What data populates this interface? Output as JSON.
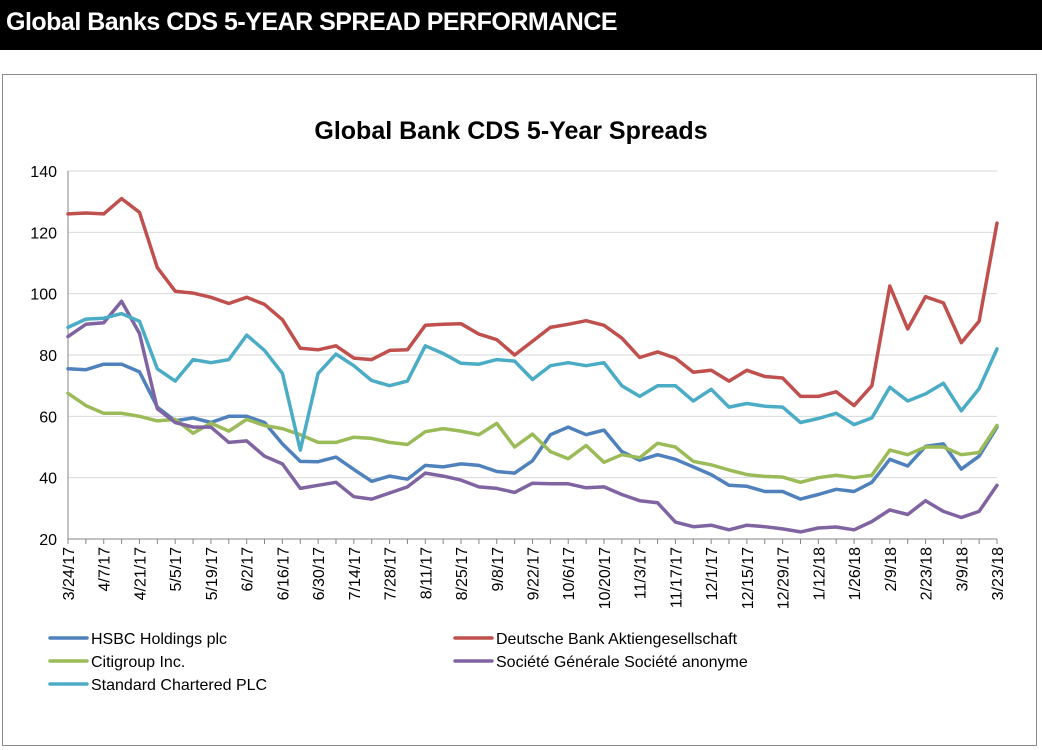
{
  "header": {
    "title": "Global Banks CDS 5-YEAR SPREAD PERFORMANCE"
  },
  "colors": {
    "hsbc": "#4f81bd",
    "deutsche": "#c0504d",
    "citi": "#9bbb59",
    "socgen": "#8064a2",
    "stanchart": "#4bacc6",
    "grid": "#d9d9d9",
    "axis": "#868686"
  },
  "chart_data": {
    "type": "line",
    "title": "Global Bank CDS 5-Year Spreads",
    "xlabel": "",
    "ylabel": "",
    "ylim": [
      20,
      140
    ],
    "yticks": [
      20,
      40,
      60,
      80,
      100,
      120,
      140
    ],
    "grid": "horizontal",
    "legend_position": "bottom",
    "x_tick_labels": [
      "3/24/17",
      "4/7/17",
      "4/21/17",
      "5/5/17",
      "5/19/17",
      "6/2/17",
      "6/16/17",
      "6/30/17",
      "7/14/17",
      "7/28/17",
      "8/11/17",
      "8/25/17",
      "9/8/17",
      "9/22/17",
      "10/6/17",
      "10/20/17",
      "11/3/17",
      "11/17/17",
      "12/1/17",
      "12/15/17",
      "12/29/17",
      "1/12/18",
      "1/26/18",
      "2/9/18",
      "2/23/18",
      "3/9/18",
      "3/23/18"
    ],
    "x": [
      "3/24/17",
      "3/31/17",
      "4/7/17",
      "4/14/17",
      "4/21/17",
      "4/28/17",
      "5/5/17",
      "5/12/17",
      "5/19/17",
      "5/26/17",
      "6/2/17",
      "6/9/17",
      "6/16/17",
      "6/23/17",
      "6/30/17",
      "7/7/17",
      "7/14/17",
      "7/21/17",
      "7/28/17",
      "8/4/17",
      "8/11/17",
      "8/18/17",
      "8/25/17",
      "9/1/17",
      "9/8/17",
      "9/15/17",
      "9/22/17",
      "9/29/17",
      "10/6/17",
      "10/13/17",
      "10/20/17",
      "10/27/17",
      "11/3/17",
      "11/10/17",
      "11/17/17",
      "11/24/17",
      "12/1/17",
      "12/8/17",
      "12/15/17",
      "12/22/17",
      "12/29/17",
      "1/5/18",
      "1/12/18",
      "1/19/18",
      "1/26/18",
      "2/2/18",
      "2/9/18",
      "2/16/18",
      "2/23/18",
      "3/2/18",
      "3/9/18",
      "3/16/18",
      "3/23/18"
    ],
    "series": [
      {
        "name": "HSBC Holdings plc",
        "color_key": "hsbc",
        "values": [
          75.5,
          75.2,
          77,
          77,
          74.5,
          63,
          58.5,
          59.5,
          58,
          60,
          60,
          58,
          51,
          45.3,
          45.2,
          46.7,
          42.7,
          38.8,
          40.5,
          39.5,
          44,
          43.5,
          44.5,
          44,
          42,
          41.5,
          45.5,
          54,
          56.5,
          54,
          55.5,
          48.5,
          45.7,
          47.5,
          46,
          43.5,
          41,
          37.5,
          37.2,
          35.5,
          35.5,
          33,
          34.5,
          36.2,
          35.5,
          38.5,
          46,
          43.8,
          50.2,
          51,
          42.8,
          47,
          56.5
        ]
      },
      {
        "name": "Deutsche Bank Aktiengesellschaft",
        "color_key": "deutsche",
        "values": [
          126,
          126.3,
          126,
          131,
          126.5,
          108.5,
          100.8,
          100.2,
          98.8,
          96.8,
          98.8,
          96.5,
          91.5,
          82.2,
          81.7,
          83,
          79,
          78.5,
          81.5,
          81.7,
          89.7,
          90,
          90.2,
          86.8,
          85,
          80,
          84.5,
          89,
          90,
          91.2,
          89.7,
          85.5,
          79.2,
          81,
          79,
          74.4,
          75,
          71.5,
          75,
          73,
          72.5,
          66.5,
          66.5,
          68,
          63.5,
          70,
          102.5,
          88.5,
          99,
          97,
          84,
          91,
          123
        ]
      },
      {
        "name": "Citigroup Inc.",
        "color_key": "citi",
        "values": [
          67.5,
          63.5,
          61,
          61,
          60,
          58.5,
          59,
          54.5,
          57.8,
          55.2,
          59,
          57,
          56,
          54,
          51.5,
          51.5,
          53.2,
          52.8,
          51.5,
          50.8,
          55,
          56,
          55.2,
          54,
          57.7,
          50,
          54.2,
          48.5,
          46.2,
          50.5,
          45,
          47.5,
          46.5,
          51.2,
          50,
          45.3,
          44.2,
          42.5,
          41,
          40.4,
          40.2,
          38.5,
          40,
          40.8,
          40,
          40.8,
          49,
          47.5,
          50,
          50,
          47.5,
          48.2,
          57
        ]
      },
      {
        "name": "Société Générale Société anonyme",
        "color_key": "socgen",
        "values": [
          86,
          90,
          90.5,
          97.5,
          87,
          62.5,
          58,
          56.5,
          56.5,
          51.5,
          52,
          47,
          44.5,
          36.5,
          37.5,
          38.5,
          33.8,
          33,
          35,
          37,
          41.5,
          40.5,
          39.2,
          37,
          36.5,
          35.2,
          38.2,
          38,
          38,
          36.7,
          37,
          34.5,
          32.5,
          31.8,
          25.5,
          24,
          24.5,
          23,
          24.5,
          24,
          23.3,
          22.3,
          23.6,
          23.9,
          23,
          25.7,
          29.5,
          28,
          32.5,
          29,
          27,
          29,
          37.5
        ]
      },
      {
        "name": "Standard Chartered PLC",
        "color_key": "stanchart",
        "values": [
          89,
          91.7,
          92,
          93.5,
          91,
          75.5,
          71.5,
          78.5,
          77.5,
          78.5,
          86.5,
          81.5,
          74,
          49,
          74,
          80.3,
          76.5,
          71.7,
          70,
          71.5,
          83,
          80.5,
          77.3,
          77,
          78.5,
          78,
          72,
          76.5,
          77.5,
          76.5,
          77.5,
          70,
          66.5,
          70,
          70,
          65,
          68.8,
          63,
          64.2,
          63.3,
          63,
          58,
          59.3,
          61,
          57.3,
          59.5,
          69.5,
          65,
          67.3,
          70.8,
          61.8,
          69,
          82
        ]
      }
    ]
  }
}
